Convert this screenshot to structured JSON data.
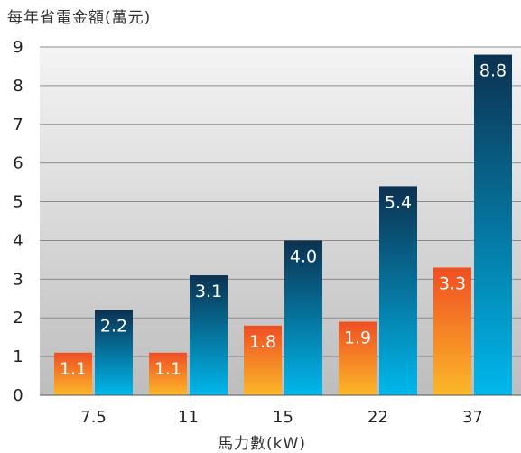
{
  "chart_data": {
    "type": "bar",
    "title": "",
    "ylabel": "每年省電金額(萬元)",
    "xlabel": "馬力數(kW)",
    "categories": [
      "7.5",
      "11",
      "15",
      "22",
      "37"
    ],
    "series": [
      {
        "name": "",
        "values": [
          1.1,
          1.1,
          1.8,
          1.9,
          3.3
        ],
        "color": "#f26a21",
        "value_labels": [
          "1.1",
          "1.1",
          "1.8",
          "1.9",
          "3.3"
        ]
      },
      {
        "name": "",
        "values": [
          2.2,
          3.1,
          4.0,
          5.4,
          8.8
        ],
        "color": "#0a4a6e",
        "value_labels": [
          "2.2",
          "3.1",
          "4.0",
          "5.4",
          "8.8"
        ]
      }
    ],
    "ylim": [
      0,
      9
    ],
    "yticks": [
      0,
      1,
      2,
      3,
      4,
      5,
      6,
      7,
      8,
      9
    ],
    "grid": true,
    "legend": "none"
  }
}
